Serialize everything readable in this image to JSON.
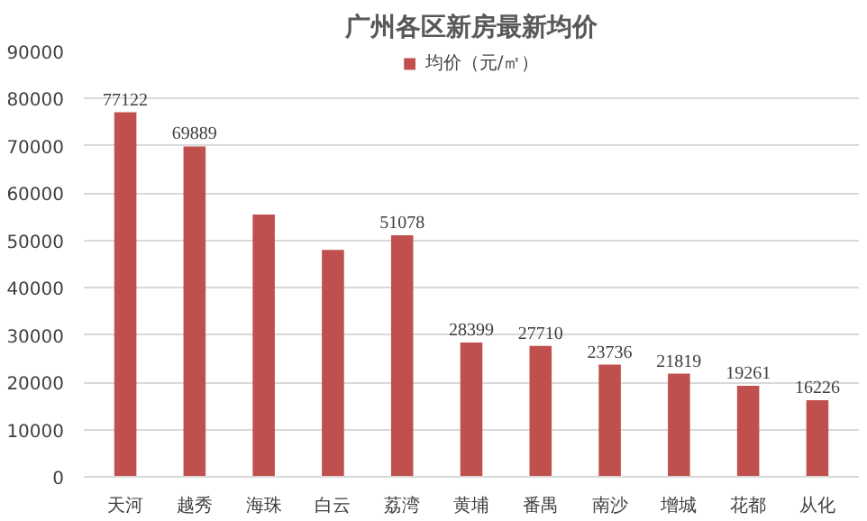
{
  "chart_data": {
    "type": "bar",
    "title": "广州各区新房最新均价",
    "categories": [
      "天河",
      "越秀",
      "海珠",
      "白云",
      "荔湾",
      "黄埔",
      "番禺",
      "南沙",
      "增城",
      "花都",
      "从化"
    ],
    "series": [
      {
        "name": "均价（元/㎡）",
        "color": "#c0504d",
        "values": [
          77122,
          69889,
          55500,
          48000,
          51078,
          28399,
          27710,
          23736,
          21819,
          19261,
          16226
        ]
      }
    ],
    "value_labels": [
      "77122",
      "69889",
      null,
      null,
      "51078",
      "28399",
      "27710",
      "23736",
      "21819",
      "19261",
      "16226"
    ],
    "ylim": [
      0,
      90000
    ],
    "yticks": [
      0,
      10000,
      20000,
      30000,
      40000,
      50000,
      60000,
      70000,
      80000,
      90000
    ],
    "grid": "y",
    "legend": "top"
  }
}
